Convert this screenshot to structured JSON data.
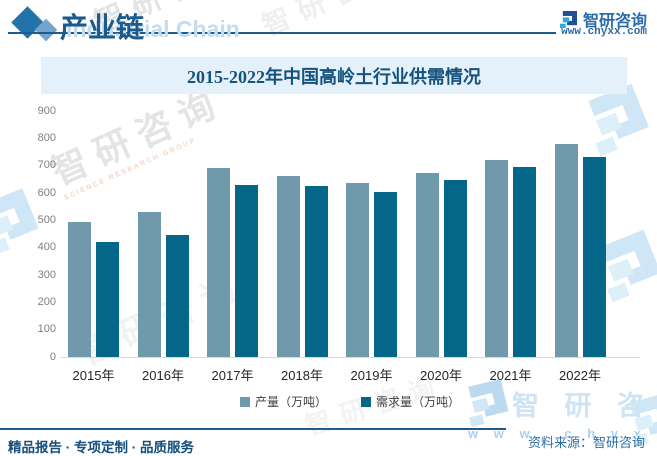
{
  "header": {
    "section_title": "产业链",
    "section_watermark_en": "Industrial Chain",
    "brand_name": "智研咨询",
    "website": "www.chyxx.com"
  },
  "chart_data": {
    "type": "bar",
    "title": "2015-2022年中国高岭土行业供需情况",
    "categories": [
      "2015年",
      "2016年",
      "2017年",
      "2018年",
      "2019年",
      "2020年",
      "2021年",
      "2022年"
    ],
    "series": [
      {
        "name": "产量（万吨）",
        "color": "#7199ac",
        "values": [
          495,
          530,
          690,
          662,
          637,
          675,
          720,
          778
        ]
      },
      {
        "name": "需求量（万吨）",
        "color": "#046688",
        "values": [
          422,
          448,
          630,
          624,
          602,
          647,
          696,
          731
        ]
      }
    ],
    "ylabel": "",
    "xlabel": "",
    "ylim": [
      0,
      900
    ],
    "ytick_interval": 100,
    "grid": false,
    "legend_position": "bottom"
  },
  "footer": {
    "services": "精品报告 · 专项定制 · 品质服务",
    "source_label": "资料来源：智研咨询"
  },
  "watermark": {
    "brand": "智研咨询",
    "brand_spaced": "智 研 咨 询",
    "brand_en": "SCIENCE RESEARCH GROUP",
    "website_spaced": "w w w . c h y x x . c o m"
  }
}
